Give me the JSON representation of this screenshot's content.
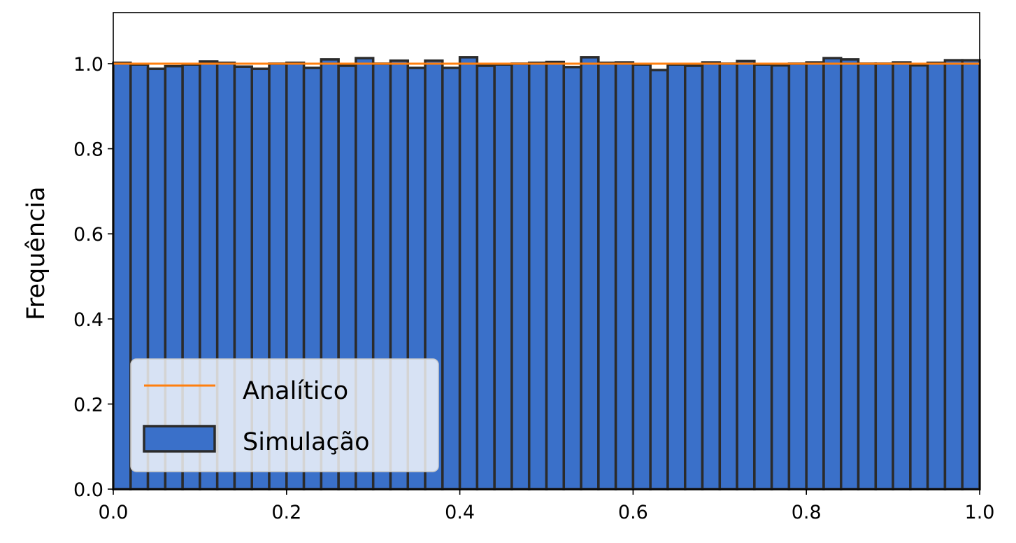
{
  "chart_data": {
    "type": "bar",
    "title": "",
    "xlabel": "",
    "ylabel": "Frequência",
    "xlim": [
      0.0,
      1.0
    ],
    "ylim": [
      0.0,
      1.12
    ],
    "xticks": [
      "0.0",
      "0.2",
      "0.4",
      "0.6",
      "0.8",
      "1.0"
    ],
    "yticks": [
      "0.0",
      "0.2",
      "0.4",
      "0.6",
      "0.8",
      "1.0"
    ],
    "grid": "horizontal",
    "legend": {
      "placement": "lower-left"
    },
    "bin_edges_start": 0.0,
    "bin_width": 0.02,
    "series": [
      {
        "name": "Simulação",
        "kind": "histogram",
        "color": "#3a70c9",
        "edge_color": "#2b2b2b",
        "values": [
          1.002,
          0.998,
          0.988,
          0.994,
          0.998,
          1.005,
          1.002,
          0.993,
          0.988,
          1.0,
          1.002,
          0.99,
          1.01,
          0.995,
          1.013,
          1.0,
          1.007,
          0.99,
          1.007,
          0.99,
          1.015,
          0.995,
          0.998,
          1.0,
          1.002,
          1.004,
          0.992,
          1.015,
          1.002,
          1.003,
          0.998,
          0.985,
          0.998,
          0.995,
          1.003,
          1.0,
          1.006,
          0.998,
          0.996,
          1.0,
          1.003,
          1.013,
          1.01,
          1.0,
          1.0,
          1.003,
          0.996,
          1.002,
          1.008,
          1.008
        ]
      },
      {
        "name": "Analítico",
        "kind": "line",
        "color": "#ff7f0e",
        "x": [
          0.0,
          1.0
        ],
        "y": [
          1.0,
          1.0
        ]
      }
    ]
  }
}
